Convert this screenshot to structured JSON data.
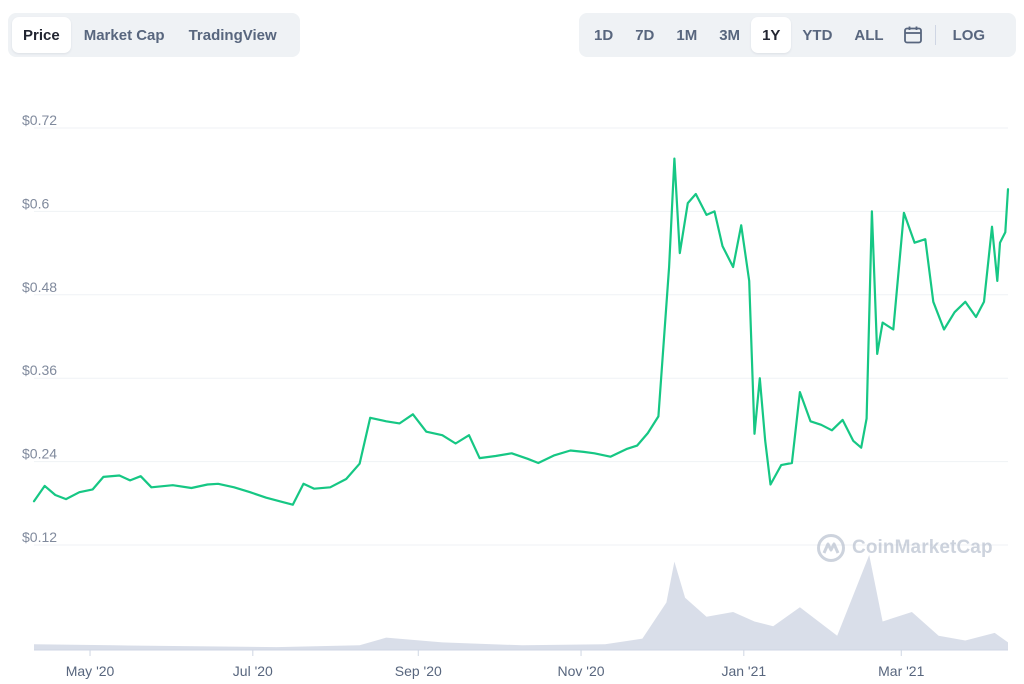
{
  "tabs": [
    "Price",
    "Market Cap",
    "TradingView"
  ],
  "active_tab": "Price",
  "ranges": [
    "1D",
    "7D",
    "1M",
    "3M",
    "1Y",
    "YTD",
    "ALL"
  ],
  "active_range": "1Y",
  "log_label": "LOG",
  "watermark": "CoinMarketCap",
  "chart_data": {
    "type": "line",
    "title": "",
    "xlabel": "",
    "ylabel": "",
    "yticks": [
      0.12,
      0.24,
      0.36,
      0.48,
      0.6,
      0.72
    ],
    "ytick_labels": [
      "$0.12",
      "$0.24",
      "$0.36",
      "$0.48",
      "$0.6",
      "$0.72"
    ],
    "ylim": [
      0.12,
      0.72
    ],
    "xtick_labels": [
      "May '20",
      "Jul '20",
      "Sep '20",
      "Nov '20",
      "Jan '21",
      "Mar '21"
    ],
    "xtick_dates": [
      "2020-05-01",
      "2020-07-01",
      "2020-09-01",
      "2020-11-01",
      "2021-01-01",
      "2021-03-01"
    ],
    "xlim": [
      "2020-04-10",
      "2021-04-10"
    ],
    "grid": true,
    "line_color": "#16c784",
    "volume_color": "#cfd6e4",
    "series": [
      {
        "values": [
          [
            "2020-04-10",
            0.183
          ],
          [
            "2020-04-14",
            0.205
          ],
          [
            "2020-04-18",
            0.192
          ],
          [
            "2020-04-22",
            0.186
          ],
          [
            "2020-04-27",
            0.196
          ],
          [
            "2020-05-02",
            0.2
          ],
          [
            "2020-05-06",
            0.218
          ],
          [
            "2020-05-12",
            0.22
          ],
          [
            "2020-05-16",
            0.213
          ],
          [
            "2020-05-20",
            0.219
          ],
          [
            "2020-05-24",
            0.203
          ],
          [
            "2020-06-01",
            0.206
          ],
          [
            "2020-06-08",
            0.202
          ],
          [
            "2020-06-14",
            0.207
          ],
          [
            "2020-06-18",
            0.208
          ],
          [
            "2020-06-24",
            0.203
          ],
          [
            "2020-06-30",
            0.196
          ],
          [
            "2020-07-06",
            0.188
          ],
          [
            "2020-07-12",
            0.182
          ],
          [
            "2020-07-16",
            0.178
          ],
          [
            "2020-07-20",
            0.208
          ],
          [
            "2020-07-24",
            0.201
          ],
          [
            "2020-07-30",
            0.203
          ],
          [
            "2020-08-05",
            0.215
          ],
          [
            "2020-08-10",
            0.237
          ],
          [
            "2020-08-14",
            0.303
          ],
          [
            "2020-08-20",
            0.298
          ],
          [
            "2020-08-25",
            0.295
          ],
          [
            "2020-08-30",
            0.308
          ],
          [
            "2020-09-04",
            0.283
          ],
          [
            "2020-09-10",
            0.278
          ],
          [
            "2020-09-15",
            0.266
          ],
          [
            "2020-09-20",
            0.278
          ],
          [
            "2020-09-24",
            0.245
          ],
          [
            "2020-09-30",
            0.248
          ],
          [
            "2020-10-06",
            0.252
          ],
          [
            "2020-10-12",
            0.244
          ],
          [
            "2020-10-16",
            0.238
          ],
          [
            "2020-10-22",
            0.249
          ],
          [
            "2020-10-28",
            0.256
          ],
          [
            "2020-11-02",
            0.254
          ],
          [
            "2020-11-06",
            0.252
          ],
          [
            "2020-11-12",
            0.247
          ],
          [
            "2020-11-18",
            0.258
          ],
          [
            "2020-11-22",
            0.263
          ],
          [
            "2020-11-26",
            0.281
          ],
          [
            "2020-11-30",
            0.305
          ],
          [
            "2020-12-04",
            0.52
          ],
          [
            "2020-12-06",
            0.676
          ],
          [
            "2020-12-08",
            0.54
          ],
          [
            "2020-12-11",
            0.612
          ],
          [
            "2020-12-14",
            0.625
          ],
          [
            "2020-12-18",
            0.595
          ],
          [
            "2020-12-21",
            0.6
          ],
          [
            "2020-12-24",
            0.55
          ],
          [
            "2020-12-28",
            0.52
          ],
          [
            "2020-12-31",
            0.58
          ],
          [
            "2021-01-03",
            0.5
          ],
          [
            "2021-01-05",
            0.28
          ],
          [
            "2021-01-07",
            0.36
          ],
          [
            "2021-01-09",
            0.27
          ],
          [
            "2021-01-11",
            0.207
          ],
          [
            "2021-01-15",
            0.235
          ],
          [
            "2021-01-19",
            0.238
          ],
          [
            "2021-01-22",
            0.34
          ],
          [
            "2021-01-26",
            0.298
          ],
          [
            "2021-01-30",
            0.293
          ],
          [
            "2021-02-03",
            0.285
          ],
          [
            "2021-02-07",
            0.3
          ],
          [
            "2021-02-11",
            0.27
          ],
          [
            "2021-02-14",
            0.26
          ],
          [
            "2021-02-16",
            0.302
          ],
          [
            "2021-02-18",
            0.6
          ],
          [
            "2021-02-20",
            0.395
          ],
          [
            "2021-02-22",
            0.44
          ],
          [
            "2021-02-26",
            0.43
          ],
          [
            "2021-03-02",
            0.598
          ],
          [
            "2021-03-06",
            0.555
          ],
          [
            "2021-03-10",
            0.56
          ],
          [
            "2021-03-13",
            0.47
          ],
          [
            "2021-03-17",
            0.43
          ],
          [
            "2021-03-21",
            0.455
          ],
          [
            "2021-03-25",
            0.47
          ],
          [
            "2021-03-29",
            0.448
          ],
          [
            "2021-04-01",
            0.47
          ],
          [
            "2021-04-04",
            0.578
          ],
          [
            "2021-04-06",
            0.5
          ],
          [
            "2021-04-07",
            0.555
          ],
          [
            "2021-04-09",
            0.57
          ],
          [
            "2021-04-10",
            0.632
          ]
        ]
      }
    ],
    "volume": {
      "name": "Volume",
      "values": [
        [
          "2020-04-10",
          0.06
        ],
        [
          "2020-05-10",
          0.05
        ],
        [
          "2020-06-10",
          0.04
        ],
        [
          "2020-07-10",
          0.03
        ],
        [
          "2020-08-10",
          0.05
        ],
        [
          "2020-08-20",
          0.13
        ],
        [
          "2020-09-10",
          0.08
        ],
        [
          "2020-10-10",
          0.05
        ],
        [
          "2020-11-10",
          0.06
        ],
        [
          "2020-11-24",
          0.12
        ],
        [
          "2020-12-03",
          0.5
        ],
        [
          "2020-12-06",
          0.93
        ],
        [
          "2020-12-10",
          0.55
        ],
        [
          "2020-12-18",
          0.35
        ],
        [
          "2020-12-28",
          0.4
        ],
        [
          "2021-01-05",
          0.3
        ],
        [
          "2021-01-12",
          0.25
        ],
        [
          "2021-01-22",
          0.45
        ],
        [
          "2021-02-05",
          0.15
        ],
        [
          "2021-02-17",
          1.0
        ],
        [
          "2021-02-22",
          0.3
        ],
        [
          "2021-03-05",
          0.4
        ],
        [
          "2021-03-15",
          0.15
        ],
        [
          "2021-03-25",
          0.1
        ],
        [
          "2021-04-05",
          0.18
        ],
        [
          "2021-04-10",
          0.08
        ]
      ]
    }
  }
}
